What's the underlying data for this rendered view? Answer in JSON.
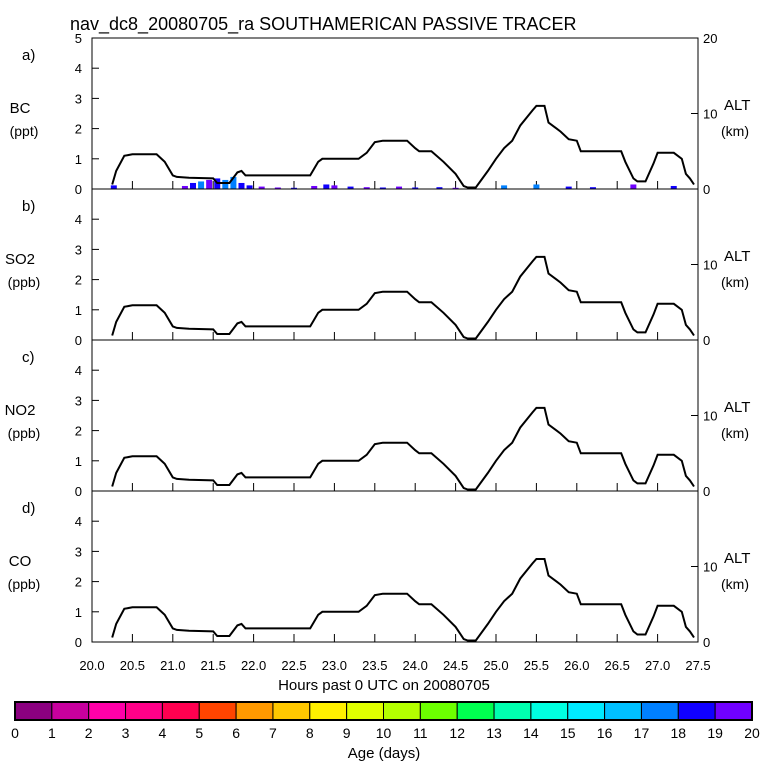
{
  "chart_data": {
    "type": "line",
    "title": "nav_dc8_20080705_ra SOUTHAMERICAN PASSIVE TRACER",
    "xlabel": "Hours past 0 UTC on 20080705",
    "xlim": [
      20.0,
      27.5
    ],
    "x_ticks": [
      "20.0",
      "20.5",
      "21.0",
      "21.5",
      "22.0",
      "22.5",
      "23.0",
      "23.5",
      "24.0",
      "24.5",
      "25.0",
      "25.5",
      "26.0",
      "26.5",
      "27.0",
      "27.5"
    ],
    "left_ylim": [
      0,
      5
    ],
    "left_ticks": [
      "0",
      "1",
      "2",
      "3",
      "4",
      "5"
    ],
    "right_ylim": [
      0,
      20
    ],
    "right_ylabel": "ALT",
    "right_yunit": "(km)",
    "right_ticks_top_panel": [
      "0",
      "10",
      "20"
    ],
    "right_ticks": [
      "0",
      "10"
    ],
    "panels": [
      {
        "letter": "a)",
        "species": "BC",
        "unit": "(ppt)"
      },
      {
        "letter": "b)",
        "species": "SO2",
        "unit": "(ppb)"
      },
      {
        "letter": "c)",
        "species": "NO2",
        "unit": "(ppb)"
      },
      {
        "letter": "d)",
        "species": "CO",
        "unit": "(ppb)"
      }
    ],
    "altitude_series": {
      "name": "ALT (km)",
      "x": [
        20.25,
        20.3,
        20.4,
        20.5,
        20.8,
        20.9,
        21.0,
        21.05,
        21.2,
        21.5,
        21.55,
        21.7,
        21.8,
        21.85,
        21.9,
        22.0,
        22.7,
        22.8,
        22.85,
        23.3,
        23.4,
        23.5,
        23.6,
        23.9,
        24.0,
        24.05,
        24.2,
        24.35,
        24.5,
        24.6,
        24.65,
        24.75,
        24.9,
        25.0,
        25.1,
        25.2,
        25.3,
        25.45,
        25.5,
        25.6,
        25.65,
        25.75,
        25.8,
        25.9,
        26.0,
        26.05,
        26.55,
        26.6,
        26.7,
        26.75,
        26.85,
        26.95,
        27.0,
        27.2,
        27.3,
        27.35,
        27.4,
        27.45
      ],
      "alt_km": [
        0.6,
        2.4,
        4.4,
        4.6,
        4.6,
        3.6,
        1.8,
        1.6,
        1.5,
        1.4,
        0.8,
        0.8,
        2.2,
        2.4,
        1.8,
        1.8,
        1.8,
        3.6,
        4.0,
        4.0,
        4.8,
        6.2,
        6.4,
        6.4,
        5.4,
        5.0,
        5.0,
        3.6,
        2.0,
        0.4,
        0.2,
        0.2,
        2.4,
        4.0,
        5.4,
        6.4,
        8.4,
        10.4,
        11.0,
        11.0,
        8.8,
        8.0,
        7.6,
        6.6,
        6.4,
        5.0,
        5.0,
        3.6,
        1.4,
        1.0,
        1.0,
        3.4,
        4.8,
        4.8,
        4.0,
        2.0,
        1.4,
        0.6
      ]
    },
    "bc_tracer_bars": {
      "x": [
        20.27,
        21.15,
        21.25,
        21.35,
        21.45,
        21.55,
        21.65,
        21.75,
        21.85,
        21.95,
        22.1,
        22.3,
        22.5,
        22.75,
        22.9,
        23.0,
        23.2,
        23.4,
        23.6,
        23.8,
        24.0,
        24.3,
        24.5,
        25.1,
        25.5,
        25.9,
        26.2,
        26.7,
        27.2
      ],
      "values": [
        0.12,
        0.1,
        0.2,
        0.25,
        0.3,
        0.35,
        0.3,
        0.4,
        0.2,
        0.12,
        0.08,
        0.05,
        0.04,
        0.1,
        0.15,
        0.12,
        0.08,
        0.06,
        0.05,
        0.08,
        0.05,
        0.06,
        0.04,
        0.12,
        0.15,
        0.08,
        0.06,
        0.15,
        0.1
      ],
      "age_days": [
        18,
        19,
        18,
        17,
        19,
        18,
        17,
        17,
        18,
        18,
        19,
        19,
        18,
        19,
        18,
        19,
        18,
        19,
        18,
        19,
        18,
        18,
        19,
        17,
        17,
        18,
        18,
        19,
        18
      ]
    },
    "colorbar": {
      "label": "Age (days)",
      "ticks": [
        "0",
        "1",
        "2",
        "3",
        "4",
        "5",
        "6",
        "7",
        "8",
        "9",
        "10",
        "11",
        "12",
        "13",
        "14",
        "15",
        "16",
        "17",
        "18",
        "19",
        "20"
      ],
      "colors": [
        "#8b0080",
        "#c8009e",
        "#ff00a8",
        "#ff0088",
        "#ff0050",
        "#ff4400",
        "#ff9900",
        "#ffc800",
        "#fff000",
        "#e0ff00",
        "#b4ff00",
        "#6cff00",
        "#00ff50",
        "#00ffb0",
        "#00ffe0",
        "#00eaff",
        "#00c0ff",
        "#0080ff",
        "#1000ff",
        "#7000ff"
      ]
    }
  }
}
